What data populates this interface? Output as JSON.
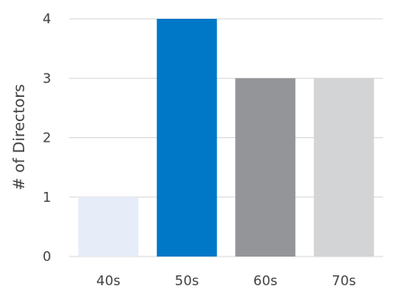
{
  "chart_data": {
    "type": "bar",
    "categories": [
      "40s",
      "50s",
      "60s",
      "70s"
    ],
    "values": [
      1,
      4,
      3,
      3
    ],
    "colors": [
      "#e6ecf8",
      "#0078c8",
      "#939598",
      "#d3d4d6"
    ],
    "title": "",
    "xlabel": "",
    "ylabel": "# of Directors",
    "ylim": [
      0,
      4
    ],
    "yticks": [
      0,
      1,
      2,
      3,
      4
    ],
    "grid": true,
    "gridColor": "#d9d9d9"
  }
}
